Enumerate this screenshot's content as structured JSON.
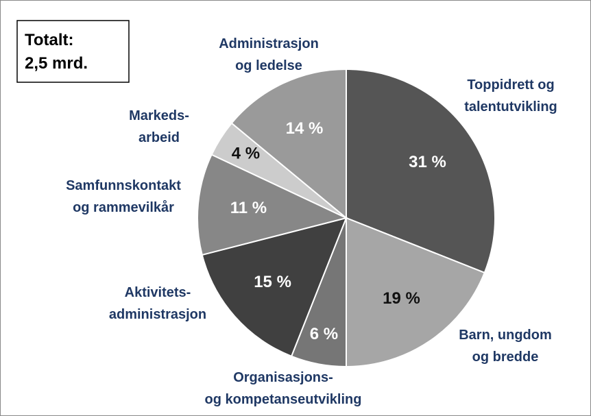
{
  "chart_data": {
    "type": "pie",
    "annotation": "Totalt:\n2,5 mrd.",
    "categories": [
      "Toppidrett og\ntalentutvikling",
      "Barn, ungdom\nog bredde",
      "Organisasjons-\nog kompetanseutvikling",
      "Aktivitets-\nadministrasjon",
      "Samfunnskontakt\nog rammevilkår",
      "Markeds-\narbeid",
      "Administrasjon\nog ledelse"
    ],
    "values": [
      31,
      19,
      6,
      15,
      11,
      4,
      14
    ],
    "value_labels": [
      "31 %",
      "19 %",
      "6 %",
      "15 %",
      "11 %",
      "4 %",
      "14 %"
    ],
    "colors": [
      "#555555",
      "#a6a6a6",
      "#767676",
      "#404040",
      "#878787",
      "#cccccc",
      "#9a9a9a"
    ],
    "value_label_colors": [
      "#ffffff",
      "#111111",
      "#ffffff",
      "#ffffff",
      "#ffffff",
      "#111111",
      "#ffffff"
    ]
  }
}
